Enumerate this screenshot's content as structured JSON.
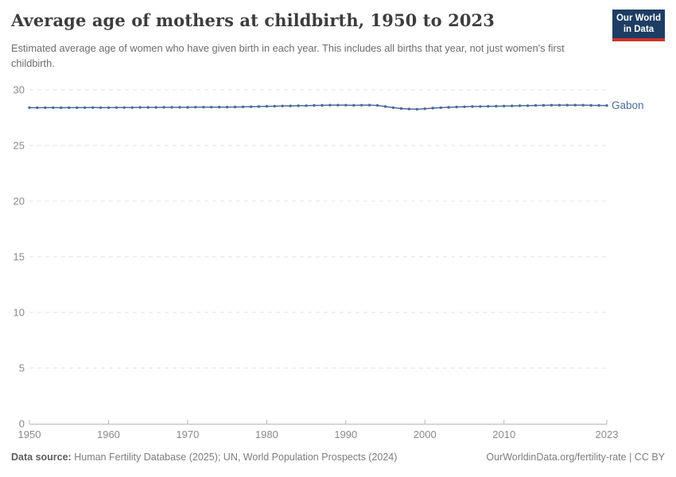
{
  "header": {
    "title": "Average age of mothers at childbirth, 1950 to 2023",
    "subtitle": "Estimated average age of women who have given birth in each year. This includes all births that year, not just women's first childbirth.",
    "logo": {
      "line1": "Our World",
      "line2": "in Data",
      "bg_color": "#1d3d63",
      "accent_color": "#c5342b"
    }
  },
  "chart_data": {
    "type": "line",
    "title": "Average age of mothers at childbirth, 1950 to 2023",
    "xlabel": "",
    "ylabel": "",
    "xlim": [
      1950,
      2023
    ],
    "ylim": [
      0,
      30
    ],
    "x_ticks": [
      1950,
      1960,
      1970,
      1980,
      1990,
      2000,
      2010,
      2023
    ],
    "y_ticks": [
      0,
      5,
      10,
      15,
      20,
      25,
      30
    ],
    "grid": "horizontal-dashed",
    "legend_position": "end-of-line-label",
    "grid_color": "#e2e2e2",
    "axis_color": "#b8b8b8",
    "tick_label_color": "#8a8a8a",
    "series": [
      {
        "name": "Gabon",
        "color": "#4c6a9c",
        "x": [
          1950,
          1951,
          1952,
          1953,
          1954,
          1955,
          1956,
          1957,
          1958,
          1959,
          1960,
          1961,
          1962,
          1963,
          1964,
          1965,
          1966,
          1967,
          1968,
          1969,
          1970,
          1971,
          1972,
          1973,
          1974,
          1975,
          1976,
          1977,
          1978,
          1979,
          1980,
          1981,
          1982,
          1983,
          1984,
          1985,
          1986,
          1987,
          1988,
          1989,
          1990,
          1991,
          1992,
          1993,
          1994,
          1995,
          1996,
          1997,
          1998,
          1999,
          2000,
          2001,
          2002,
          2003,
          2004,
          2005,
          2006,
          2007,
          2008,
          2009,
          2010,
          2011,
          2012,
          2013,
          2014,
          2015,
          2016,
          2017,
          2018,
          2019,
          2020,
          2021,
          2022,
          2023
        ],
        "values": [
          28.4,
          28.39,
          28.4,
          28.4,
          28.39,
          28.4,
          28.4,
          28.4,
          28.41,
          28.4,
          28.4,
          28.41,
          28.41,
          28.41,
          28.42,
          28.42,
          28.42,
          28.43,
          28.43,
          28.43,
          28.43,
          28.44,
          28.44,
          28.44,
          28.45,
          28.45,
          28.46,
          28.47,
          28.48,
          28.5,
          28.52,
          28.53,
          28.55,
          28.56,
          28.57,
          28.58,
          28.6,
          28.61,
          28.62,
          28.62,
          28.62,
          28.61,
          28.62,
          28.63,
          28.6,
          28.5,
          28.4,
          28.32,
          28.28,
          28.26,
          28.3,
          28.36,
          28.4,
          28.43,
          28.46,
          28.48,
          28.5,
          28.51,
          28.52,
          28.53,
          28.54,
          28.56,
          28.57,
          28.58,
          28.6,
          28.61,
          28.62,
          28.62,
          28.63,
          28.63,
          28.62,
          28.61,
          28.6,
          28.59
        ]
      }
    ]
  },
  "footer": {
    "datasource_label": "Data source:",
    "datasource_value": "Human Fertility Database (2025); UN, World Population Prospects (2024)",
    "credit": "OurWorldinData.org/fertility-rate | CC BY"
  }
}
